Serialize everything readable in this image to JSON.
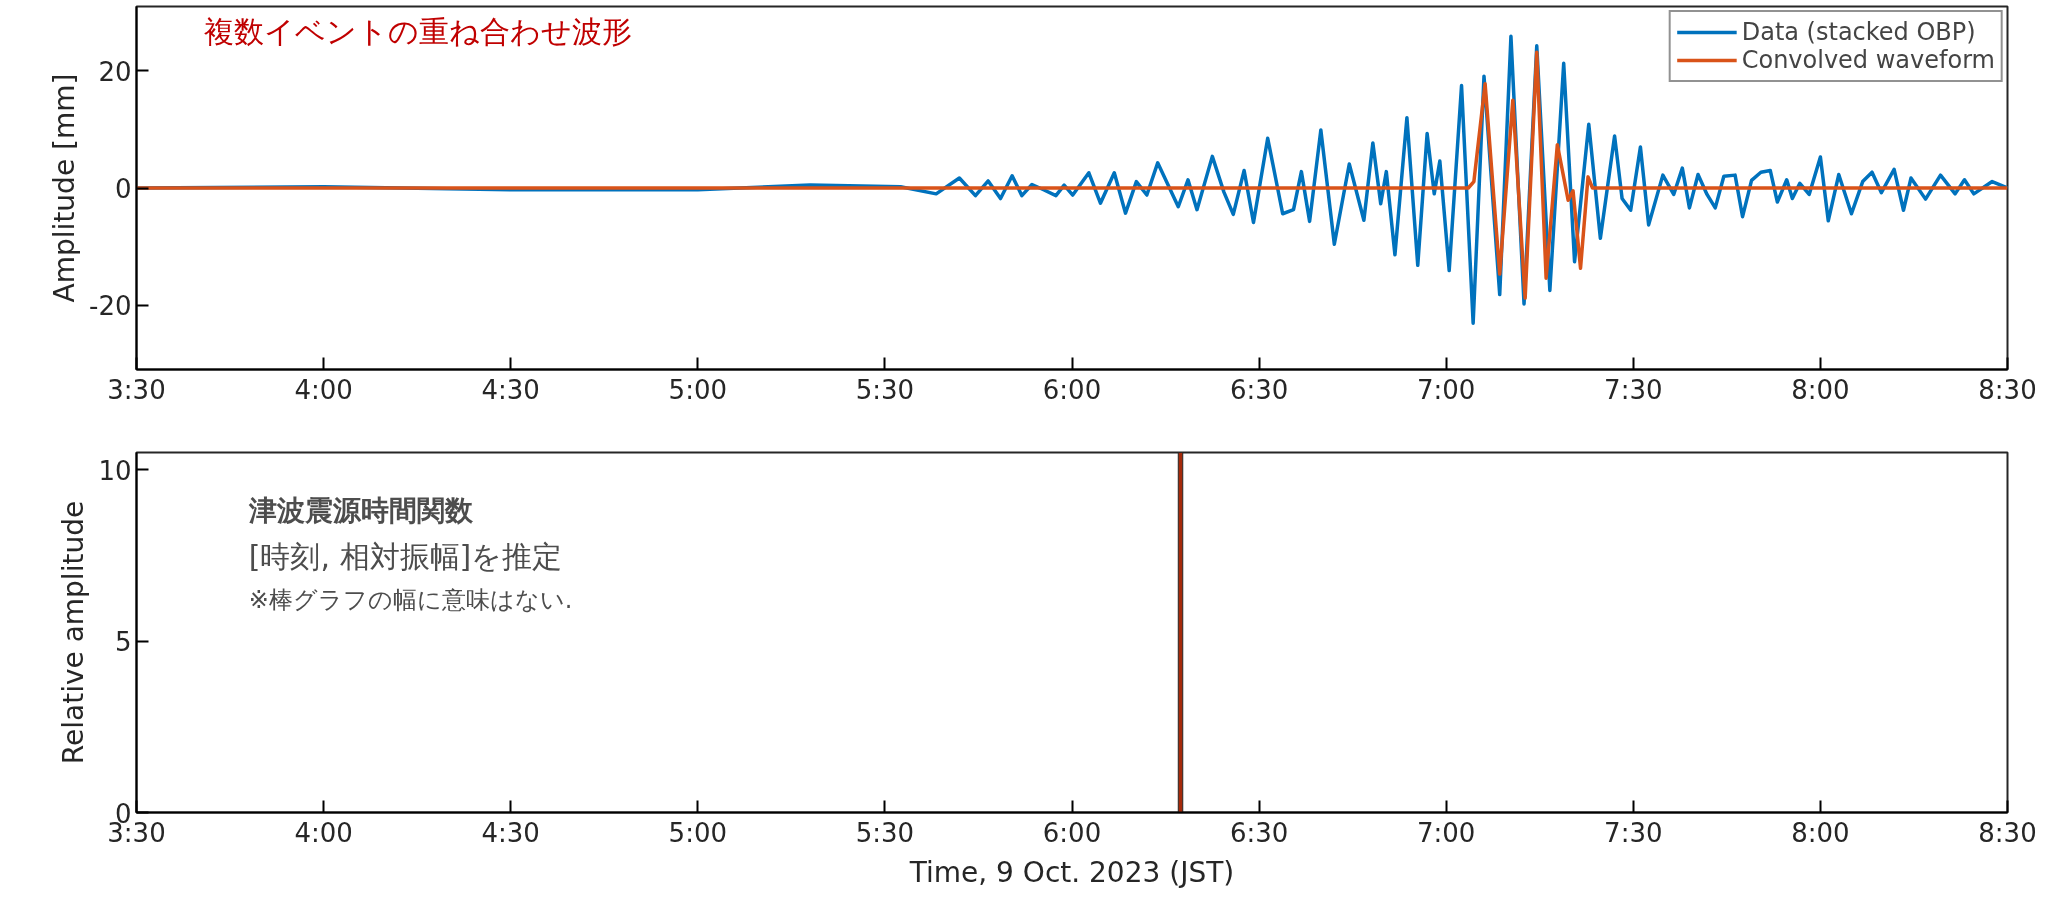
{
  "chart_data": [
    {
      "type": "line",
      "ylabel": "Amplitude [mm]",
      "annotations": [
        "複数イベントの重ね合わせ波形"
      ],
      "legend": "top right",
      "xlim": [
        3.5,
        8.5
      ],
      "xticks": [
        {
          "value": 3.5,
          "label": "3:30"
        },
        {
          "value": 4.0,
          "label": "4:00"
        },
        {
          "value": 4.5,
          "label": "4:30"
        },
        {
          "value": 5.0,
          "label": "5:00"
        },
        {
          "value": 5.5,
          "label": "5:30"
        },
        {
          "value": 6.0,
          "label": "6:00"
        },
        {
          "value": 6.5,
          "label": "6:30"
        },
        {
          "value": 7.0,
          "label": "7:00"
        },
        {
          "value": 7.5,
          "label": "7:30"
        },
        {
          "value": 8.0,
          "label": "8:00"
        },
        {
          "value": 8.5,
          "label": "8:30"
        }
      ],
      "ylim": [
        -31,
        31
      ],
      "yticks": [
        -20,
        0,
        20
      ],
      "series": [
        {
          "name": "Data (stacked OBP)",
          "color": "#0072bd",
          "x": [
            3.5,
            4.0,
            4.5,
            5.0,
            5.3,
            5.542,
            5.637,
            5.699,
            5.742,
            5.776,
            5.809,
            5.84,
            5.866,
            5.893,
            5.924,
            5.957,
            5.979,
            6.002,
            6.045,
            6.076,
            6.113,
            6.143,
            6.172,
            6.2,
            6.229,
            6.284,
            6.31,
            6.334,
            6.375,
            6.406,
            6.431,
            6.46,
            6.485,
            6.523,
            6.563,
            6.592,
            6.613,
            6.635,
            6.665,
            6.701,
            6.741,
            6.78,
            6.804,
            6.825,
            6.84,
            6.863,
            6.895,
            6.924,
            6.949,
            6.968,
            6.983,
            7.008,
            7.041,
            7.072,
            7.101,
            7.143,
            7.173,
            7.208,
            7.242,
            7.277,
            7.314,
            7.343,
            7.381,
            7.412,
            7.45,
            7.47,
            7.493,
            7.519,
            7.541,
            7.579,
            7.608,
            7.631,
            7.65,
            7.673,
            7.697,
            7.719,
            7.742,
            7.772,
            7.792,
            7.816,
            7.841,
            7.866,
            7.885,
            7.91,
            7.925,
            7.945,
            7.97,
            8.0,
            8.021,
            8.049,
            8.083,
            8.113,
            8.138,
            8.163,
            8.197,
            8.222,
            8.242,
            8.281,
            8.321,
            8.36,
            8.385,
            8.41,
            8.459,
            8.5
          ],
          "values": [
            0,
            0.2,
            -0.3,
            -0.3,
            0.5,
            0.2,
            -1.0,
            1.7,
            -1.3,
            1.2,
            -1.8,
            2.1,
            -1.3,
            0.6,
            -0.3,
            -1.3,
            0.5,
            -1.2,
            2.6,
            -2.6,
            2.6,
            -4.3,
            1.1,
            -1.2,
            4.3,
            -3.2,
            1.4,
            -3.7,
            5.4,
            -0.7,
            -4.5,
            3.0,
            -5.9,
            8.5,
            -4.4,
            -3.7,
            2.8,
            -5.7,
            9.9,
            -9.6,
            4.1,
            -5.5,
            7.7,
            -2.7,
            2.8,
            -11.4,
            12.0,
            -13.2,
            9.3,
            -1.0,
            4.6,
            -14.1,
            17.5,
            -23.1,
            19.1,
            -18.2,
            25.9,
            -19.8,
            24.3,
            -17.5,
            21.3,
            -12.6,
            10.9,
            -8.6,
            8.9,
            -1.8,
            -3.8,
            7.0,
            -6.3,
            2.2,
            -1.1,
            3.4,
            -3.4,
            2.3,
            -1.1,
            -3.4,
            2.0,
            2.2,
            -4.9,
            1.3,
            2.7,
            3.0,
            -2.4,
            1.4,
            -1.8,
            0.8,
            -1.1,
            5.3,
            -5.6,
            2.3,
            -4.4,
            1.1,
            2.7,
            -0.8,
            3.2,
            -3.8,
            1.7,
            -1.9,
            2.2,
            -1.0,
            1.4,
            -1.0,
            1.1,
            0
          ]
        },
        {
          "name": "Convolved waveform",
          "color": "#d95319",
          "x": [
            3.5,
            7.059,
            7.074,
            7.104,
            7.143,
            7.178,
            7.211,
            7.242,
            7.267,
            7.297,
            7.326,
            7.339,
            7.359,
            7.379,
            7.391,
            8.5
          ],
          "values": [
            0,
            0,
            1.1,
            17.8,
            -14.7,
            15.0,
            -18.8,
            23.2,
            -15.4,
            7.4,
            -2.1,
            -0.5,
            -13.7,
            1.9,
            0,
            0
          ]
        }
      ]
    },
    {
      "type": "bar",
      "xlabel": "Time, 9 Oct. 2023 (JST)",
      "ylabel": "Relative amplitude",
      "annotations": [
        "津波震源時間関数",
        "[時刻, 相対振幅]を推定",
        "※棒グラフの幅に意味はない."
      ],
      "xlim": [
        3.5,
        8.5
      ],
      "xticks": [
        {
          "value": 3.5,
          "label": "3:30"
        },
        {
          "value": 4.0,
          "label": "4:00"
        },
        {
          "value": 4.5,
          "label": "4:30"
        },
        {
          "value": 5.0,
          "label": "5:00"
        },
        {
          "value": 5.5,
          "label": "5:30"
        },
        {
          "value": 6.0,
          "label": "6:00"
        },
        {
          "value": 6.5,
          "label": "6:30"
        },
        {
          "value": 7.0,
          "label": "7:00"
        },
        {
          "value": 7.5,
          "label": "7:30"
        },
        {
          "value": 8.0,
          "label": "8:00"
        },
        {
          "value": 8.5,
          "label": "8:30"
        }
      ],
      "ylim": [
        0,
        10.5
      ],
      "yticks": [
        0,
        5,
        10
      ],
      "x": [
        6.29
      ],
      "values": [
        10.5
      ],
      "color": "#a52a0a"
    }
  ]
}
